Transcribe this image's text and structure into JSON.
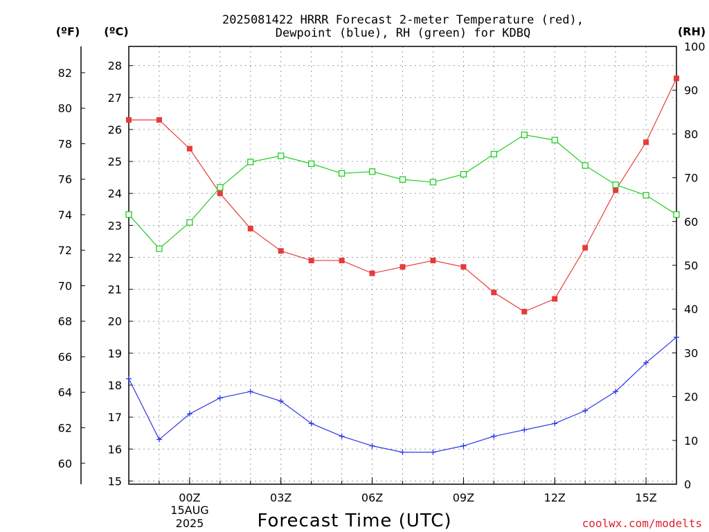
{
  "chart_data": {
    "type": "line",
    "title_line1": "2025081422 HRRR Forecast 2-meter Temperature (red),",
    "title_line2": "Dewpoint (blue), RH (green) for KDBQ",
    "xlabel": "Forecast Time (UTC)",
    "credit": "coolwx.com/modelts",
    "units": {
      "fahrenheit": "(ºF)",
      "celsius": "(ºC)",
      "rh": "(RH)"
    },
    "x": [
      "22Z",
      "23Z",
      "00Z",
      "01Z",
      "02Z",
      "03Z",
      "04Z",
      "05Z",
      "06Z",
      "07Z",
      "08Z",
      "09Z",
      "10Z",
      "11Z",
      "12Z",
      "13Z",
      "14Z",
      "15Z",
      "16Z"
    ],
    "x_tick_labels": [
      "00Z",
      "03Z",
      "06Z",
      "09Z",
      "12Z",
      "15Z"
    ],
    "x_tick_index": [
      2,
      5,
      8,
      11,
      14,
      17
    ],
    "date_label": {
      "day": "15AUG",
      "year": "2025"
    },
    "celsius_axis": {
      "range": [
        14.9,
        28.6
      ],
      "ticks": [
        15,
        16,
        17,
        18,
        19,
        20,
        21,
        22,
        23,
        24,
        25,
        26,
        27,
        28
      ]
    },
    "fahrenheit_axis": {
      "ticks": [
        60,
        62,
        64,
        66,
        68,
        70,
        72,
        74,
        76,
        78,
        80,
        82
      ]
    },
    "rh_axis": {
      "range": [
        0,
        100
      ],
      "ticks": [
        0,
        10,
        20,
        30,
        40,
        50,
        60,
        70,
        80,
        90,
        100
      ]
    },
    "grid": true,
    "series": [
      {
        "name": "Temperature",
        "axis": "celsius",
        "color": "#e83a3a",
        "marker": "filled-square",
        "values": [
          26.3,
          26.3,
          25.4,
          24.0,
          22.9,
          22.2,
          21.9,
          21.9,
          21.5,
          21.7,
          21.9,
          21.7,
          20.9,
          20.3,
          20.7,
          22.3,
          24.1,
          25.6,
          27.6
        ]
      },
      {
        "name": "Dewpoint",
        "axis": "celsius",
        "color": "#2a35e6",
        "marker": "plus",
        "values": [
          18.2,
          16.3,
          17.1,
          17.6,
          17.8,
          17.5,
          16.8,
          16.4,
          16.1,
          15.9,
          15.9,
          16.1,
          16.4,
          16.6,
          16.8,
          17.2,
          17.8,
          18.7,
          19.5
        ]
      },
      {
        "name": "RH",
        "axis": "rh",
        "color": "#22cc22",
        "marker": "open-square",
        "values": [
          61.6,
          53.8,
          59.8,
          67.8,
          73.6,
          75.0,
          73.2,
          71.0,
          71.4,
          69.6,
          69.0,
          70.8,
          75.4,
          79.8,
          78.6,
          72.8,
          68.4,
          66.0,
          61.6
        ]
      }
    ]
  }
}
